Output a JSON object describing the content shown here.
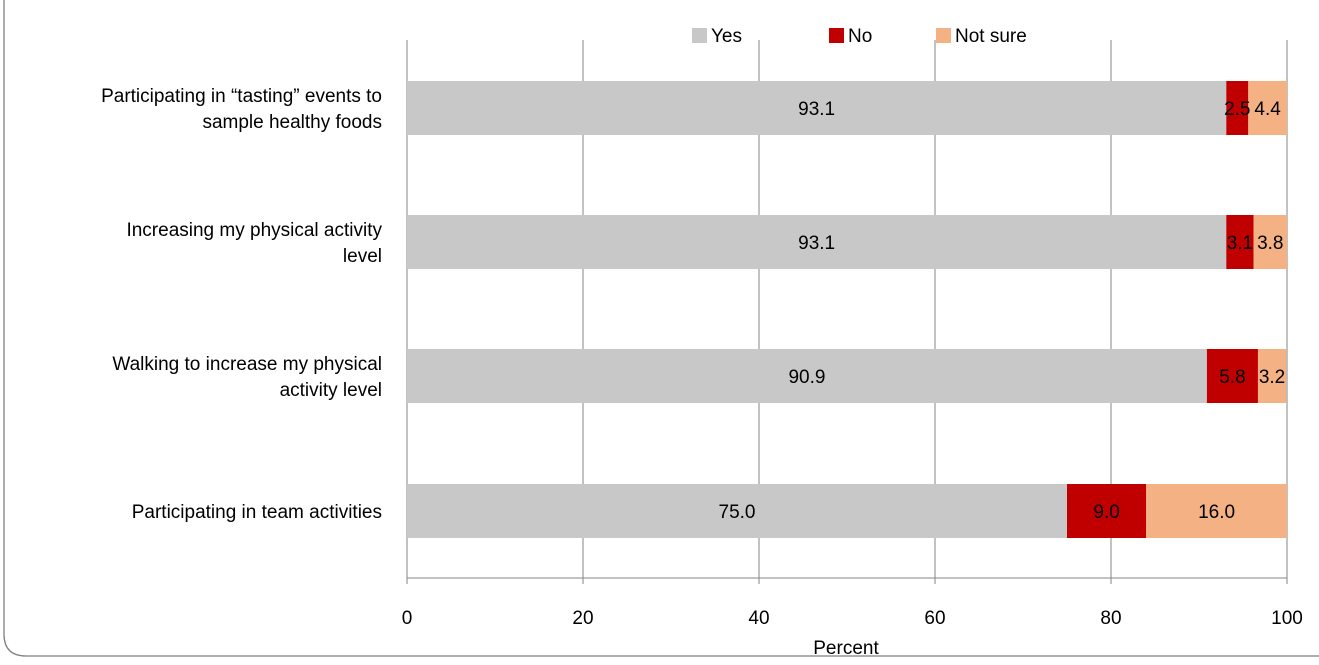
{
  "chart_data": {
    "type": "bar",
    "orientation": "horizontal",
    "stacked": true,
    "categories": [
      [
        "Participating in “tasting” events to",
        "sample healthy foods"
      ],
      [
        "Increasing my physical activity",
        "level"
      ],
      [
        "Walking to increase my physical",
        "activity level"
      ],
      [
        "Participating in team activities"
      ]
    ],
    "series": [
      {
        "name": "Yes",
        "color": "#c8c8c8",
        "values": [
          93.1,
          93.1,
          90.9,
          75.0
        ],
        "labels": [
          "93.1",
          "93.1",
          "90.9",
          "75.0"
        ]
      },
      {
        "name": "No",
        "color": "#c00000",
        "values": [
          2.5,
          3.1,
          5.8,
          9.0
        ],
        "labels": [
          "2.5",
          "3.1",
          "5.8",
          "9.0"
        ]
      },
      {
        "name": "Not sure",
        "color": "#f4b183",
        "values": [
          4.4,
          3.8,
          3.2,
          16.0
        ],
        "labels": [
          "4.4",
          "3.8",
          "3.2",
          "16.0"
        ]
      }
    ],
    "xlabel": "Percent",
    "xlim": [
      0,
      100
    ],
    "xticks": [
      0,
      20,
      40,
      60,
      80,
      100
    ],
    "xtick_labels": [
      "0",
      "20",
      "40",
      "60",
      "80",
      "100"
    ],
    "grid": true,
    "legend_position": "top"
  }
}
